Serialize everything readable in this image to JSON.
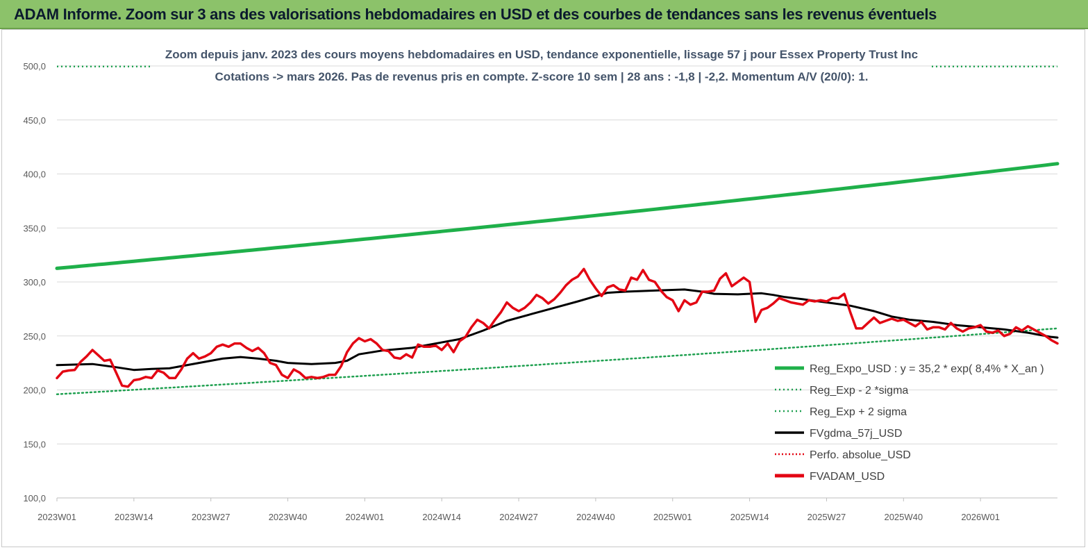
{
  "banner": {
    "title": "ADAM Informe. Zoom sur 3 ans des valorisations hebdomadaires en USD et des courbes de tendances sans les revenus éventuels"
  },
  "colors": {
    "banner_bg": "#8cc26a",
    "reg_expo": "#1fb04a",
    "reg_dotted": "#1fa050",
    "fvgdma": "#000000",
    "fvadam": "#e30613",
    "perfo": "#e30613"
  },
  "chart_data": {
    "type": "line",
    "title": "Zoom depuis janv. 2023 des cours moyens hebdomadaires en USD, tendance exponentielle, lissage 57 j pour Essex Property Trust Inc",
    "subtitle": "Cotations -> mars 2026. Pas de revenus pris en compte. Z-score 10 sem | 28 ans : -1,8 | -2,2. Momentum A/V (20/0): 1.",
    "xlabel": "",
    "ylabel": "",
    "ylim": [
      100,
      500
    ],
    "yticks": [
      "100,0",
      "150,0",
      "200,0",
      "250,0",
      "300,0",
      "350,0",
      "400,0",
      "450,0",
      "500,0"
    ],
    "x_tick_labels": [
      "2023W01",
      "2023W14",
      "2023W27",
      "2023W40",
      "2024W01",
      "2024W14",
      "2024W27",
      "2024W40",
      "2025W01",
      "2025W14",
      "2025W27",
      "2025W40",
      "2026W01"
    ],
    "x_weeks_total": 169,
    "legend_position": "right",
    "grid": "horizontal",
    "series": [
      {
        "name": "Reg_Expo_USD : y = 35,2 * exp( 8,4% *  X_an )",
        "style": "solid-thick",
        "points": [
          [
            0,
            312.6
          ],
          [
            169,
            409.5
          ]
        ]
      },
      {
        "name": "Reg_Exp - 2 *sigma",
        "style": "dotted",
        "points": [
          [
            0,
            196.0
          ],
          [
            169,
            257.0
          ]
        ]
      },
      {
        "name": "Reg_Exp + 2 sigma",
        "style": "dotted",
        "points": [
          [
            0,
            499.5
          ],
          [
            169,
            499.5
          ]
        ]
      },
      {
        "name": "FVgdma_57j_USD",
        "style": "solid",
        "points": [
          [
            0,
            223
          ],
          [
            6,
            224
          ],
          [
            10,
            221
          ],
          [
            13,
            218.5
          ],
          [
            16,
            219.5
          ],
          [
            19,
            220
          ],
          [
            24,
            225
          ],
          [
            28,
            229
          ],
          [
            31,
            230.5
          ],
          [
            34,
            229
          ],
          [
            37,
            227
          ],
          [
            39,
            225
          ],
          [
            43,
            224
          ],
          [
            47,
            225
          ],
          [
            49,
            227
          ],
          [
            51,
            233
          ],
          [
            55,
            236.5
          ],
          [
            60,
            239
          ],
          [
            64,
            243
          ],
          [
            68,
            247
          ],
          [
            72,
            255
          ],
          [
            76,
            264
          ],
          [
            80,
            270
          ],
          [
            84,
            276
          ],
          [
            88,
            282
          ],
          [
            93,
            290
          ],
          [
            96,
            291
          ],
          [
            101,
            292
          ],
          [
            106,
            293
          ],
          [
            109,
            291
          ],
          [
            111,
            289
          ],
          [
            115,
            288.5
          ],
          [
            119,
            289.5
          ],
          [
            121,
            288
          ],
          [
            123,
            286
          ],
          [
            126,
            284
          ],
          [
            130,
            281
          ],
          [
            134,
            278
          ],
          [
            138,
            273
          ],
          [
            141,
            268
          ],
          [
            144,
            265
          ],
          [
            148,
            263
          ],
          [
            152,
            260
          ],
          [
            156,
            258
          ],
          [
            160,
            256
          ],
          [
            164,
            253
          ],
          [
            168,
            249
          ],
          [
            169,
            248.5
          ]
        ]
      },
      {
        "name": "Perfo. absolue_USD",
        "style": "dotted",
        "points": []
      },
      {
        "name": "FVADAM_USD",
        "style": "solid-thick",
        "points": [
          [
            0,
            211
          ],
          [
            1,
            217
          ],
          [
            2,
            218
          ],
          [
            3,
            218.5
          ],
          [
            4,
            226
          ],
          [
            5,
            231
          ],
          [
            6,
            237
          ],
          [
            7,
            232
          ],
          [
            8,
            227
          ],
          [
            9,
            228
          ],
          [
            10,
            216
          ],
          [
            11,
            204
          ],
          [
            12,
            203
          ],
          [
            13,
            209
          ],
          [
            14,
            210
          ],
          [
            15,
            212
          ],
          [
            16,
            211
          ],
          [
            17,
            218
          ],
          [
            18,
            216
          ],
          [
            19,
            211
          ],
          [
            20,
            211
          ],
          [
            21,
            219
          ],
          [
            22,
            229
          ],
          [
            23,
            234
          ],
          [
            24,
            229
          ],
          [
            25,
            231
          ],
          [
            26,
            234
          ],
          [
            27,
            240
          ],
          [
            28,
            242
          ],
          [
            29,
            240
          ],
          [
            30,
            243
          ],
          [
            31,
            243
          ],
          [
            32,
            239
          ],
          [
            33,
            236
          ],
          [
            34,
            239
          ],
          [
            35,
            234
          ],
          [
            36,
            225
          ],
          [
            37,
            223
          ],
          [
            38,
            214
          ],
          [
            39,
            211
          ],
          [
            40,
            219
          ],
          [
            41,
            216
          ],
          [
            42,
            211
          ],
          [
            43,
            212
          ],
          [
            44,
            211
          ],
          [
            45,
            212
          ],
          [
            46,
            214
          ],
          [
            47,
            214
          ],
          [
            48,
            222
          ],
          [
            49,
            235
          ],
          [
            50,
            243
          ],
          [
            51,
            248
          ],
          [
            52,
            245
          ],
          [
            53,
            247
          ],
          [
            54,
            243
          ],
          [
            55,
            237
          ],
          [
            56,
            236
          ],
          [
            57,
            230
          ],
          [
            58,
            229
          ],
          [
            59,
            233
          ],
          [
            60,
            230
          ],
          [
            61,
            242
          ],
          [
            62,
            240
          ],
          [
            63,
            240
          ],
          [
            64,
            241
          ],
          [
            65,
            237
          ],
          [
            66,
            243
          ],
          [
            67,
            235
          ],
          [
            68,
            245
          ],
          [
            69,
            249
          ],
          [
            70,
            258
          ],
          [
            71,
            265
          ],
          [
            72,
            262
          ],
          [
            73,
            257
          ],
          [
            74,
            265
          ],
          [
            75,
            272
          ],
          [
            76,
            281
          ],
          [
            77,
            276
          ],
          [
            78,
            273
          ],
          [
            79,
            276
          ],
          [
            80,
            281
          ],
          [
            81,
            288
          ],
          [
            82,
            285
          ],
          [
            83,
            280
          ],
          [
            84,
            284
          ],
          [
            85,
            290
          ],
          [
            86,
            297
          ],
          [
            87,
            302
          ],
          [
            88,
            305
          ],
          [
            89,
            312
          ],
          [
            90,
            302
          ],
          [
            91,
            294
          ],
          [
            92,
            287
          ],
          [
            93,
            295
          ],
          [
            94,
            297
          ],
          [
            95,
            293
          ],
          [
            96,
            292
          ],
          [
            97,
            304
          ],
          [
            98,
            302
          ],
          [
            99,
            311
          ],
          [
            100,
            302
          ],
          [
            101,
            300
          ],
          [
            102,
            292
          ],
          [
            103,
            286
          ],
          [
            104,
            283
          ],
          [
            105,
            273
          ],
          [
            106,
            283
          ],
          [
            107,
            279
          ],
          [
            108,
            281
          ],
          [
            109,
            291
          ],
          [
            110,
            291
          ],
          [
            111,
            292
          ],
          [
            112,
            303
          ],
          [
            113,
            308
          ],
          [
            114,
            296
          ],
          [
            115,
            300
          ],
          [
            116,
            304
          ],
          [
            117,
            300
          ],
          [
            118,
            263
          ],
          [
            119,
            274
          ],
          [
            120,
            276
          ],
          [
            121,
            280
          ],
          [
            122,
            285
          ],
          [
            123,
            283
          ],
          [
            124,
            281
          ],
          [
            125,
            280
          ],
          [
            126,
            279
          ],
          [
            127,
            283
          ],
          [
            128,
            282
          ],
          [
            129,
            283
          ],
          [
            130,
            282
          ],
          [
            131,
            285
          ],
          [
            132,
            285
          ],
          [
            133,
            289
          ],
          [
            134,
            272
          ],
          [
            135,
            257
          ],
          [
            136,
            257
          ],
          [
            137,
            262
          ],
          [
            138,
            267
          ],
          [
            139,
            262
          ],
          [
            140,
            264
          ],
          [
            141,
            266
          ],
          [
            142,
            264
          ],
          [
            143,
            265
          ],
          [
            144,
            262
          ],
          [
            145,
            259
          ],
          [
            146,
            263
          ],
          [
            147,
            256
          ],
          [
            148,
            258
          ],
          [
            149,
            258
          ],
          [
            150,
            256
          ],
          [
            151,
            262
          ],
          [
            152,
            257
          ],
          [
            153,
            254
          ],
          [
            154,
            257
          ],
          [
            155,
            258
          ],
          [
            156,
            260
          ],
          [
            157,
            254
          ],
          [
            158,
            253
          ],
          [
            159,
            255
          ],
          [
            160,
            250
          ],
          [
            161,
            252
          ],
          [
            162,
            258
          ],
          [
            163,
            255
          ],
          [
            164,
            259
          ],
          [
            165,
            256
          ],
          [
            166,
            253
          ],
          [
            167,
            250
          ],
          [
            168,
            246
          ],
          [
            169,
            243
          ]
        ]
      }
    ]
  }
}
